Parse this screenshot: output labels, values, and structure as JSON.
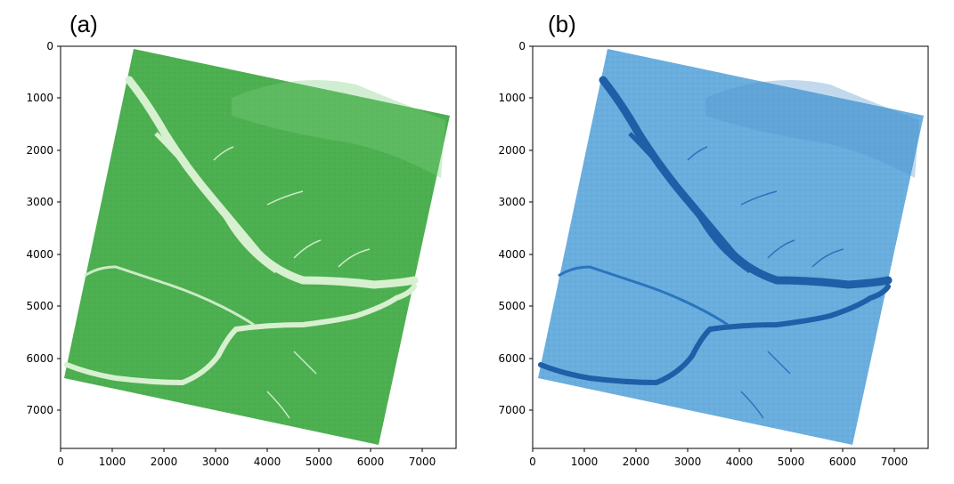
{
  "panels": [
    {
      "label": "(a)",
      "colormap": "green",
      "colors": {
        "base": "#4caf50",
        "dark": "#3e9a45",
        "light": "#cdebc6",
        "river": "#d7f0cf"
      },
      "x_ticks": [
        "0",
        "1000",
        "2000",
        "3000",
        "4000",
        "5000",
        "6000",
        "7000"
      ],
      "y_ticks": [
        "0",
        "1000",
        "2000",
        "3000",
        "4000",
        "5000",
        "6000",
        "7000"
      ]
    },
    {
      "label": "(b)",
      "colormap": "blue",
      "colors": {
        "base": "#6aaede",
        "dark": "#5a9fd4",
        "light": "#2b74bd",
        "river": "#1e5fa8"
      },
      "x_ticks": [
        "0",
        "1000",
        "2000",
        "3000",
        "4000",
        "5000",
        "6000",
        "7000"
      ],
      "y_ticks": [
        "0",
        "1000",
        "2000",
        "3000",
        "4000",
        "5000",
        "6000",
        "7000"
      ]
    }
  ]
}
